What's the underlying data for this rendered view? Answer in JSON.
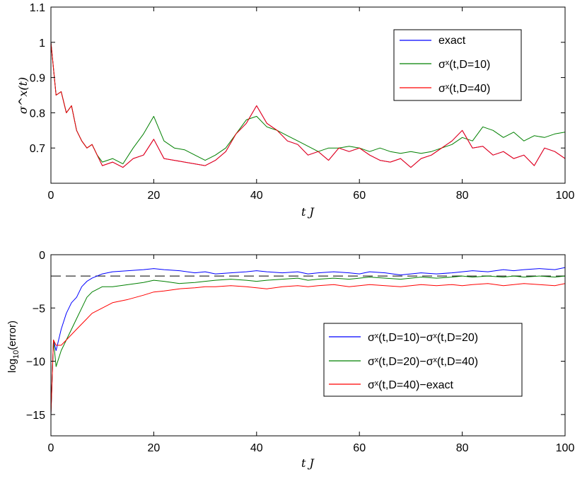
{
  "chart_data": [
    {
      "type": "line",
      "title": "",
      "xlabel": "t J",
      "ylabel": "σ^x(t)",
      "xlim": [
        0,
        100
      ],
      "ylim": [
        0.6,
        1.1
      ],
      "xticks": [
        0,
        20,
        40,
        60,
        80,
        100
      ],
      "yticks": [
        0.7,
        0.8,
        0.9,
        1,
        1.1
      ],
      "ytick_labels": [
        "0.7",
        "0.8",
        "0.9",
        "1",
        "1.1"
      ],
      "grid": false,
      "legend_position": "top-right",
      "series": [
        {
          "name": "exact",
          "color": "#0000ff",
          "x": [
            0,
            1,
            2,
            3,
            4,
            5,
            6,
            7,
            8,
            9,
            10,
            12,
            14,
            16,
            18,
            20,
            22,
            24,
            26,
            28,
            30,
            32,
            34,
            36,
            38,
            40,
            42,
            44,
            46,
            48,
            50,
            52,
            54,
            56,
            58,
            60,
            62,
            64,
            66,
            68,
            70,
            72,
            74,
            76,
            78,
            80,
            82,
            84,
            86,
            88,
            90,
            92,
            94,
            96,
            98,
            100
          ],
          "y": [
            1.0,
            0.85,
            0.86,
            0.8,
            0.82,
            0.75,
            0.72,
            0.7,
            0.71,
            0.68,
            0.65,
            0.66,
            0.645,
            0.67,
            0.68,
            0.725,
            0.67,
            0.665,
            0.66,
            0.655,
            0.65,
            0.665,
            0.69,
            0.74,
            0.77,
            0.82,
            0.77,
            0.75,
            0.72,
            0.71,
            0.68,
            0.69,
            0.665,
            0.7,
            0.69,
            0.7,
            0.68,
            0.665,
            0.66,
            0.67,
            0.645,
            0.67,
            0.68,
            0.7,
            0.72,
            0.75,
            0.7,
            0.705,
            0.68,
            0.69,
            0.67,
            0.68,
            0.65,
            0.7,
            0.69,
            0.67
          ]
        },
        {
          "name": "σˣ(t,D=10)",
          "color": "#008000",
          "x": [
            0,
            1,
            2,
            3,
            4,
            5,
            6,
            7,
            8,
            9,
            10,
            12,
            14,
            16,
            18,
            20,
            22,
            24,
            26,
            28,
            30,
            32,
            34,
            36,
            38,
            40,
            42,
            44,
            46,
            48,
            50,
            52,
            54,
            56,
            58,
            60,
            62,
            64,
            66,
            68,
            70,
            72,
            74,
            76,
            78,
            80,
            82,
            84,
            86,
            88,
            90,
            92,
            94,
            96,
            98,
            100
          ],
          "y": [
            1.0,
            0.85,
            0.86,
            0.8,
            0.82,
            0.75,
            0.72,
            0.7,
            0.71,
            0.68,
            0.66,
            0.67,
            0.655,
            0.7,
            0.74,
            0.79,
            0.72,
            0.7,
            0.695,
            0.68,
            0.665,
            0.68,
            0.7,
            0.74,
            0.78,
            0.79,
            0.76,
            0.75,
            0.735,
            0.72,
            0.705,
            0.69,
            0.7,
            0.7,
            0.705,
            0.7,
            0.69,
            0.7,
            0.69,
            0.685,
            0.69,
            0.685,
            0.69,
            0.7,
            0.71,
            0.73,
            0.72,
            0.76,
            0.75,
            0.73,
            0.745,
            0.72,
            0.735,
            0.73,
            0.74,
            0.745
          ]
        },
        {
          "name": "σˣ(t,D=40)",
          "color": "#ff0000",
          "x": [
            0,
            1,
            2,
            3,
            4,
            5,
            6,
            7,
            8,
            9,
            10,
            12,
            14,
            16,
            18,
            20,
            22,
            24,
            26,
            28,
            30,
            32,
            34,
            36,
            38,
            40,
            42,
            44,
            46,
            48,
            50,
            52,
            54,
            56,
            58,
            60,
            62,
            64,
            66,
            68,
            70,
            72,
            74,
            76,
            78,
            80,
            82,
            84,
            86,
            88,
            90,
            92,
            94,
            96,
            98,
            100
          ],
          "y": [
            1.0,
            0.85,
            0.86,
            0.8,
            0.82,
            0.75,
            0.72,
            0.7,
            0.71,
            0.68,
            0.65,
            0.66,
            0.645,
            0.67,
            0.68,
            0.725,
            0.67,
            0.665,
            0.66,
            0.655,
            0.65,
            0.665,
            0.69,
            0.74,
            0.77,
            0.82,
            0.77,
            0.75,
            0.72,
            0.71,
            0.68,
            0.69,
            0.665,
            0.7,
            0.69,
            0.7,
            0.68,
            0.665,
            0.66,
            0.67,
            0.645,
            0.67,
            0.68,
            0.7,
            0.72,
            0.75,
            0.7,
            0.705,
            0.68,
            0.69,
            0.67,
            0.68,
            0.65,
            0.7,
            0.69,
            0.67
          ]
        }
      ]
    },
    {
      "type": "line",
      "title": "",
      "xlabel": "t J",
      "ylabel": "log10(error)",
      "xlim": [
        0,
        100
      ],
      "ylim": [
        -17,
        0
      ],
      "xticks": [
        0,
        20,
        40,
        60,
        80,
        100
      ],
      "yticks": [
        -15,
        -10,
        -5,
        0
      ],
      "ytick_labels": [
        "−15",
        "−10",
        "−5",
        "0"
      ],
      "grid": false,
      "legend_position": "center-right",
      "reference_line": {
        "y": -2,
        "style": "dashed",
        "color": "#000000"
      },
      "series": [
        {
          "name": "σˣ(t,D=10)−σˣ(t,D=20)",
          "color": "#0000ff",
          "x": [
            0,
            0.5,
            1,
            2,
            3,
            4,
            5,
            6,
            7,
            8,
            10,
            12,
            15,
            18,
            20,
            22,
            25,
            28,
            30,
            32,
            35,
            38,
            40,
            42,
            45,
            48,
            50,
            52,
            55,
            58,
            60,
            62,
            65,
            68,
            70,
            72,
            75,
            78,
            80,
            82,
            85,
            88,
            90,
            92,
            95,
            98,
            100
          ],
          "y": [
            -15,
            -8,
            -9,
            -7,
            -5.5,
            -4.5,
            -4,
            -3,
            -2.5,
            -2.2,
            -1.8,
            -1.6,
            -1.5,
            -1.4,
            -1.3,
            -1.4,
            -1.5,
            -1.7,
            -1.6,
            -1.8,
            -1.7,
            -1.6,
            -1.5,
            -1.6,
            -1.7,
            -1.6,
            -1.8,
            -1.7,
            -1.6,
            -1.7,
            -1.8,
            -1.6,
            -1.7,
            -1.9,
            -1.8,
            -1.7,
            -1.8,
            -1.7,
            -1.6,
            -1.5,
            -1.6,
            -1.4,
            -1.5,
            -1.4,
            -1.3,
            -1.4,
            -1.2
          ]
        },
        {
          "name": "σˣ(t,D=20)−σˣ(t,D=40)",
          "color": "#008000",
          "x": [
            0,
            0.5,
            1,
            2,
            3,
            4,
            5,
            6,
            7,
            8,
            10,
            12,
            15,
            18,
            20,
            22,
            25,
            28,
            30,
            32,
            35,
            38,
            40,
            42,
            45,
            48,
            50,
            52,
            55,
            58,
            60,
            62,
            65,
            68,
            70,
            72,
            75,
            78,
            80,
            82,
            85,
            88,
            90,
            92,
            95,
            98,
            100
          ],
          "y": [
            -15,
            -8,
            -10.5,
            -9,
            -8,
            -7,
            -6,
            -5,
            -4,
            -3.5,
            -3,
            -3,
            -2.8,
            -2.6,
            -2.4,
            -2.5,
            -2.7,
            -2.6,
            -2.5,
            -2.4,
            -2.3,
            -2.4,
            -2.5,
            -2.4,
            -2.3,
            -2.2,
            -2.4,
            -2.3,
            -2.2,
            -2.3,
            -2.2,
            -2.1,
            -2.2,
            -2.3,
            -2.2,
            -2.1,
            -2.2,
            -2.1,
            -2.0,
            -2.1,
            -2.0,
            -2.1,
            -2.0,
            -2.1,
            -2.0,
            -2.1,
            -2.0
          ]
        },
        {
          "name": "σˣ(t,D=40)−exact",
          "color": "#ff0000",
          "x": [
            0,
            0.5,
            1,
            2,
            3,
            4,
            5,
            6,
            7,
            8,
            10,
            12,
            15,
            18,
            20,
            22,
            25,
            28,
            30,
            32,
            35,
            38,
            40,
            42,
            45,
            48,
            50,
            52,
            55,
            58,
            60,
            62,
            65,
            68,
            70,
            72,
            75,
            78,
            80,
            82,
            85,
            88,
            90,
            92,
            95,
            98,
            100
          ],
          "y": [
            -15,
            -8,
            -8.5,
            -8.5,
            -8,
            -7.5,
            -7,
            -6.5,
            -6,
            -5.5,
            -5,
            -4.5,
            -4.2,
            -3.8,
            -3.5,
            -3.4,
            -3.2,
            -3.1,
            -3.0,
            -3.0,
            -2.9,
            -3.0,
            -3.1,
            -3.2,
            -3.0,
            -2.9,
            -3.0,
            -2.9,
            -2.8,
            -3.0,
            -2.9,
            -2.8,
            -2.9,
            -3.0,
            -2.9,
            -2.8,
            -2.9,
            -2.8,
            -2.9,
            -2.8,
            -2.7,
            -2.9,
            -2.8,
            -2.7,
            -2.8,
            -2.9,
            -2.7
          ]
        }
      ]
    }
  ]
}
